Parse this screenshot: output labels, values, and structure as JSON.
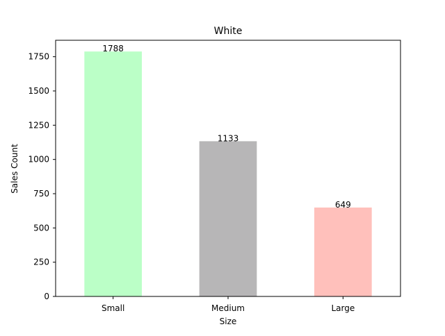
{
  "chart_data": {
    "type": "bar",
    "title": "White",
    "xlabel": "Size",
    "ylabel": "Sales Count",
    "categories": [
      "Small",
      "Medium",
      "Large"
    ],
    "values": [
      1788,
      1133,
      649
    ],
    "data_labels": [
      "1788",
      "1133",
      "649"
    ],
    "colors": [
      "#bbffc7",
      "#b7b6b7",
      "#ffc0bb"
    ],
    "ylim": [
      0,
      1870
    ],
    "yticks": [
      0,
      250,
      500,
      750,
      1000,
      1250,
      1500,
      1750
    ],
    "grid": false
  }
}
